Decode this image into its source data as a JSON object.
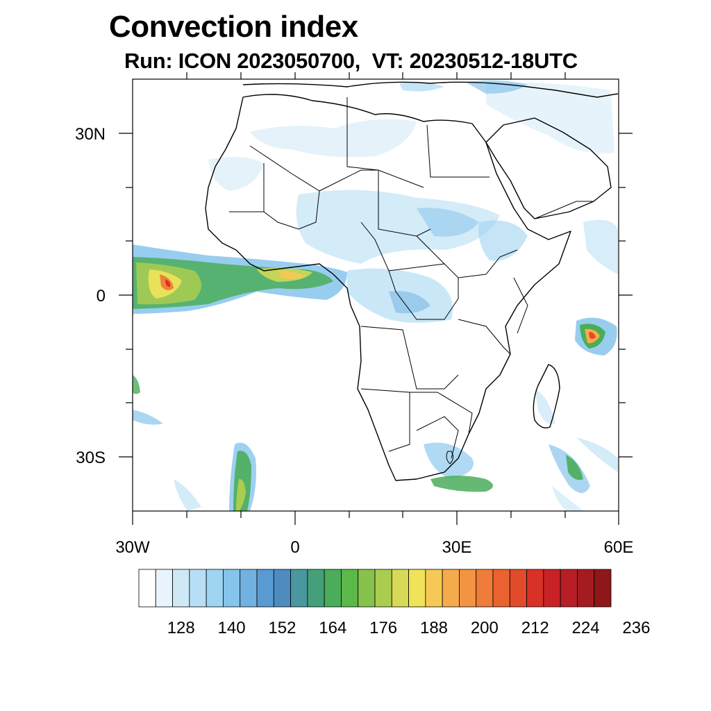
{
  "title": "Convection index",
  "subtitle": "Run: ICON 2023050700,  VT: 20230512-18UTC",
  "axes": {
    "lat_ticks": [
      {
        "value": 30,
        "label": "30N"
      },
      {
        "value": 0,
        "label": "0"
      },
      {
        "value": -30,
        "label": "30S"
      }
    ],
    "lon_ticks": [
      {
        "value": -30,
        "label": "30W"
      },
      {
        "value": 0,
        "label": "0"
      },
      {
        "value": 30,
        "label": "30E"
      },
      {
        "value": 60,
        "label": "60E"
      }
    ],
    "lon_range": [
      -30,
      60
    ],
    "lat_range": [
      -40,
      40
    ]
  },
  "colorbar": {
    "labels": [
      "128",
      "140",
      "152",
      "164",
      "176",
      "188",
      "200",
      "212",
      "224",
      "236"
    ],
    "colors": [
      "#ffffff",
      "#e8f4fb",
      "#cfe8f6",
      "#b7def4",
      "#9fd4f2",
      "#86c4ec",
      "#72b2e2",
      "#5a9ad2",
      "#4e8cc0",
      "#4a97a0",
      "#44a078",
      "#4aad5a",
      "#5db84a",
      "#86c24c",
      "#aacd50",
      "#d6da56",
      "#f0e35a",
      "#f6c955",
      "#f5ab4c",
      "#f39442",
      "#ef7c38",
      "#e96230",
      "#e14a2a",
      "#d93027",
      "#c92226",
      "#b81e25",
      "#a51b22",
      "#8f1719"
    ]
  }
}
